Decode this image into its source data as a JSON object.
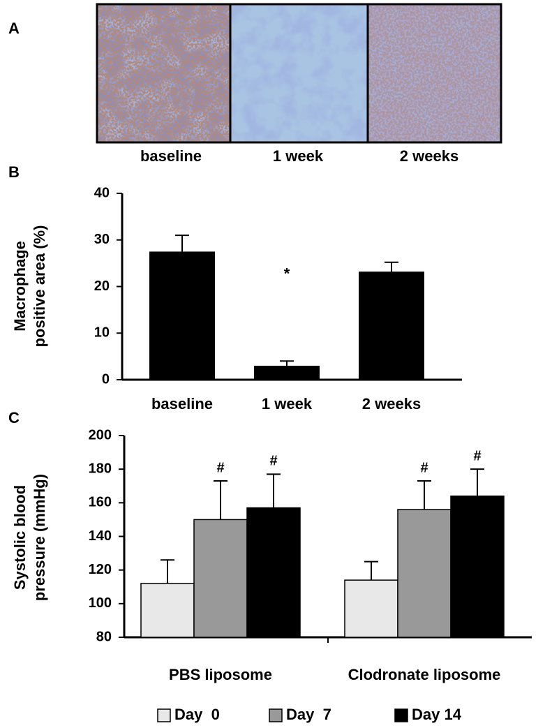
{
  "panel_a": {
    "letter": "A",
    "captions": [
      "baseline",
      "1 week",
      "2 weeks"
    ]
  },
  "chart_data": [
    {
      "type": "bar",
      "letter": "B",
      "ylabel": [
        "Macrophage",
        "positive area (%)"
      ],
      "categories": [
        "baseline",
        "1 week",
        "2 weeks"
      ],
      "values": [
        27.5,
        3,
        23.2
      ],
      "errors": [
        3.5,
        1,
        2
      ],
      "annotations": [
        null,
        "*",
        null
      ],
      "color": "#000000",
      "ylim": [
        0,
        40
      ],
      "yticks": [
        0,
        10,
        20,
        30,
        40
      ]
    },
    {
      "type": "grouped_bar",
      "letter": "C",
      "ylabel": [
        "Systolic blood",
        "pressure (mmHg)"
      ],
      "categories": [
        "PBS liposome",
        "Clodronate liposome"
      ],
      "series": [
        {
          "name": "Day  0",
          "color": "#e8e8e8",
          "values": [
            112,
            114
          ],
          "errors": [
            14,
            11
          ],
          "annotations": [
            null,
            null
          ]
        },
        {
          "name": "Day  7",
          "color": "#999999",
          "values": [
            150,
            156
          ],
          "errors": [
            23,
            17
          ],
          "annotations": [
            "#",
            "#"
          ]
        },
        {
          "name": "Day 14",
          "color": "#000000",
          "values": [
            157,
            164
          ],
          "errors": [
            20,
            16
          ],
          "annotations": [
            "#",
            "#"
          ]
        }
      ],
      "ylim": [
        80,
        200
      ],
      "yticks": [
        80,
        100,
        120,
        140,
        160,
        180,
        200
      ],
      "legend": "bottom"
    }
  ]
}
